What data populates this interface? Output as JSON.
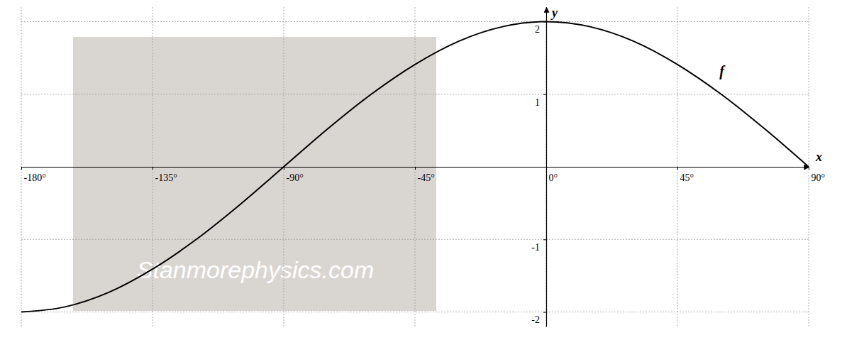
{
  "chart_data": {
    "type": "line",
    "x_label": "x",
    "y_label": "y",
    "x": [
      -180,
      -165,
      -150,
      -135,
      -120,
      -105,
      -90,
      -75,
      -60,
      -45,
      -30,
      -15,
      0,
      15,
      30,
      45,
      60,
      75,
      90
    ],
    "series": [
      {
        "name": "f",
        "color": "#000000",
        "line_style": "solid",
        "values": [
          -2,
          -1.93,
          -1.73,
          -1.41,
          -1,
          -0.52,
          0,
          0.52,
          1,
          1.41,
          1.73,
          1.93,
          2,
          1.93,
          1.73,
          1.41,
          1,
          0.52,
          0
        ]
      }
    ],
    "xlim": [
      -180,
      90
    ],
    "ylim": [
      -2.2,
      2.2
    ],
    "xticks": [
      {
        "value": -180,
        "label": "-180°"
      },
      {
        "value": -135,
        "label": "-135°"
      },
      {
        "value": -90,
        "label": "-90°"
      },
      {
        "value": -45,
        "label": "-45°"
      },
      {
        "value": 0,
        "label": "0°"
      },
      {
        "value": 45,
        "label": "45°"
      },
      {
        "value": 90,
        "label": "90°"
      }
    ],
    "yticks": [
      -2,
      -1,
      1,
      2
    ],
    "grid": true,
    "annotations": [
      "Stanmorephysics.com"
    ]
  }
}
